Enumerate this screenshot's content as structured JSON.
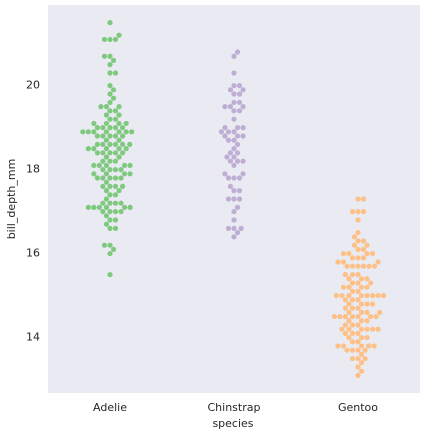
{
  "chart_data": {
    "type": "swarm",
    "x_label": "species",
    "y_label": "bill_depth_mm",
    "categories": [
      "Adelie",
      "Chinstrap",
      "Gentoo"
    ],
    "colors": [
      "#7fc97f",
      "#beaed4",
      "#fdc086"
    ],
    "values": [
      [
        15.5,
        16.0,
        16.1,
        16.2,
        16.2,
        16.6,
        16.6,
        16.7,
        16.8,
        16.8,
        16.9,
        17.0,
        17.0,
        17.0,
        17.0,
        17.1,
        17.1,
        17.1,
        17.1,
        17.1,
        17.1,
        17.2,
        17.2,
        17.2,
        17.2,
        17.3,
        17.4,
        17.4,
        17.5,
        17.5,
        17.6,
        17.6,
        17.6,
        17.6,
        17.7,
        17.8,
        17.8,
        17.8,
        17.8,
        17.8,
        17.9,
        17.9,
        17.9,
        17.9,
        18.0,
        18.0,
        18.0,
        18.0,
        18.1,
        18.1,
        18.1,
        18.1,
        18.1,
        18.2,
        18.2,
        18.2,
        18.3,
        18.3,
        18.4,
        18.4,
        18.4,
        18.4,
        18.4,
        18.5,
        18.5,
        18.5,
        18.5,
        18.5,
        18.6,
        18.6,
        18.6,
        18.6,
        18.6,
        18.6,
        18.7,
        18.7,
        18.8,
        18.8,
        18.8,
        18.8,
        18.8,
        18.9,
        18.9,
        18.9,
        18.9,
        18.9,
        18.9,
        18.9,
        19.0,
        19.0,
        19.0,
        19.0,
        19.0,
        19.1,
        19.1,
        19.1,
        19.1,
        19.2,
        19.2,
        19.3,
        19.3,
        19.4,
        19.4,
        19.5,
        19.5,
        19.5,
        19.6,
        19.7,
        19.8,
        19.9,
        20.0,
        20.3,
        20.3,
        20.5,
        20.6,
        20.7,
        20.7,
        21.1,
        21.1,
        21.1,
        21.2,
        21.5
      ],
      [
        16.4,
        16.5,
        16.6,
        16.6,
        16.6,
        16.8,
        17.0,
        17.1,
        17.3,
        17.3,
        17.3,
        17.5,
        17.5,
        17.6,
        17.8,
        17.8,
        17.8,
        17.9,
        17.9,
        18.1,
        18.2,
        18.2,
        18.2,
        18.3,
        18.3,
        18.4,
        18.4,
        18.5,
        18.6,
        18.7,
        18.7,
        18.8,
        18.8,
        18.8,
        18.9,
        18.9,
        18.9,
        19.0,
        19.0,
        19.0,
        19.2,
        19.4,
        19.4,
        19.5,
        19.5,
        19.5,
        19.6,
        19.6,
        19.8,
        19.8,
        19.9,
        19.9,
        20.0,
        20.0,
        20.3,
        20.7,
        20.8
      ],
      [
        13.1,
        13.2,
        13.3,
        13.4,
        13.5,
        13.5,
        13.5,
        13.6,
        13.7,
        13.7,
        13.7,
        13.7,
        13.8,
        13.8,
        13.8,
        13.8,
        13.8,
        13.9,
        13.9,
        14.0,
        14.0,
        14.0,
        14.1,
        14.1,
        14.1,
        14.2,
        14.2,
        14.2,
        14.2,
        14.2,
        14.2,
        14.3,
        14.3,
        14.3,
        14.4,
        14.4,
        14.4,
        14.5,
        14.5,
        14.5,
        14.5,
        14.5,
        14.5,
        14.5,
        14.6,
        14.6,
        14.6,
        14.6,
        14.7,
        14.7,
        14.7,
        14.8,
        14.8,
        14.8,
        14.8,
        14.9,
        14.9,
        14.9,
        15.0,
        15.0,
        15.0,
        15.0,
        15.0,
        15.0,
        15.0,
        15.0,
        15.1,
        15.1,
        15.2,
        15.2,
        15.2,
        15.2,
        15.3,
        15.3,
        15.3,
        15.4,
        15.4,
        15.4,
        15.5,
        15.5,
        15.5,
        15.7,
        15.7,
        15.7,
        15.7,
        15.7,
        15.7,
        15.8,
        15.8,
        15.8,
        15.9,
        15.9,
        15.9,
        16.0,
        16.0,
        16.0,
        16.0,
        16.1,
        16.1,
        16.2,
        16.2,
        16.3,
        16.3,
        16.4,
        16.5,
        16.8,
        17.0,
        17.0,
        17.0,
        17.3,
        17.3
      ]
    ],
    "ylim": [
      12.68,
      21.92
    ],
    "yticks": [
      14,
      16,
      18,
      20
    ],
    "grid": false
  }
}
